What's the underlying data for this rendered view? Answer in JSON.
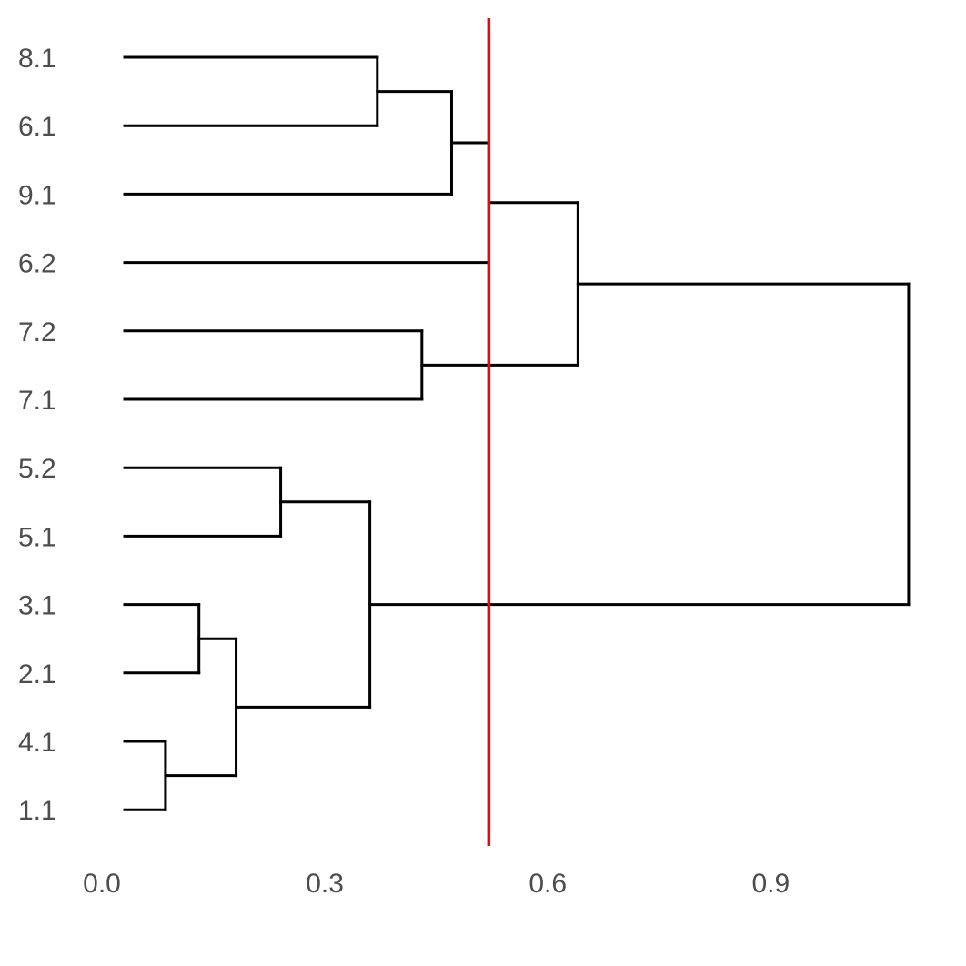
{
  "chart_data": {
    "type": "dendrogram",
    "orientation": "horizontal",
    "title": "",
    "xlabel": "",
    "ylabel": "",
    "xlim": [
      0.0,
      1.1
    ],
    "x_ticks": [
      0.0,
      0.3,
      0.6,
      0.9
    ],
    "x_tick_labels": [
      "0.0",
      "0.3",
      "0.6",
      "0.9"
    ],
    "leaves": [
      "8.1",
      "6.1",
      "9.1",
      "6.2",
      "7.2",
      "7.1",
      "5.2",
      "5.1",
      "3.1",
      "2.1",
      "4.1",
      "1.1"
    ],
    "merges": [
      {
        "id": "m1",
        "left": "8.1",
        "right": "6.1",
        "height": 0.34
      },
      {
        "id": "m2",
        "left": "m1",
        "right": "9.1",
        "height": 0.44
      },
      {
        "id": "m3",
        "left": "m2",
        "right": "6.2",
        "height": 0.49
      },
      {
        "id": "m4",
        "left": "7.2",
        "right": "7.1",
        "height": 0.4
      },
      {
        "id": "m5",
        "left": "m3",
        "right": "m4",
        "height": 0.61
      },
      {
        "id": "m6",
        "left": "5.2",
        "right": "5.1",
        "height": 0.21
      },
      {
        "id": "m7",
        "left": "3.1",
        "right": "2.1",
        "height": 0.1
      },
      {
        "id": "m8",
        "left": "4.1",
        "right": "1.1",
        "height": 0.055
      },
      {
        "id": "m9",
        "left": "m7",
        "right": "m8",
        "height": 0.15
      },
      {
        "id": "m10",
        "left": "m6",
        "right": "m9",
        "height": 0.33
      },
      {
        "id": "m11",
        "left": "m5",
        "right": "m10",
        "height": 1.055
      }
    ],
    "cut_height": 0.49,
    "colors": {
      "branch": "#000000",
      "cut_line": "#ff0000",
      "text": "#4d4d4d"
    },
    "grid": false,
    "legend": "none"
  }
}
